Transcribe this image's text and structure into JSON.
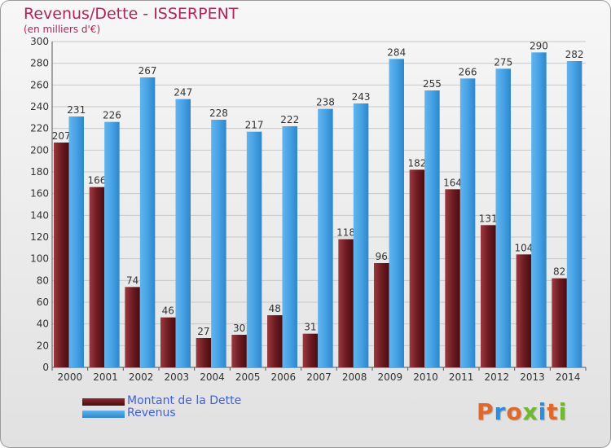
{
  "chart_data": {
    "type": "bar",
    "title": "Revenus/Dette - ISSERPENT",
    "subtitle": "(en milliers d'€)",
    "categories": [
      "2000",
      "2001",
      "2002",
      "2003",
      "2004",
      "2005",
      "2006",
      "2007",
      "2008",
      "2009",
      "2010",
      "2011",
      "2012",
      "2013",
      "2014"
    ],
    "series": [
      {
        "name": "Montant de la Dette",
        "color": "#6b1a1e",
        "values": [
          207,
          166,
          74,
          46,
          27,
          30,
          48,
          31,
          118,
          96,
          182,
          164,
          131,
          104,
          82
        ]
      },
      {
        "name": "Revenus",
        "color": "#3f9ee0",
        "values": [
          231,
          226,
          267,
          247,
          228,
          217,
          222,
          238,
          243,
          284,
          255,
          266,
          275,
          290,
          282
        ]
      }
    ],
    "ylim": [
      0,
      300
    ],
    "yticks": [
      0,
      20,
      40,
      60,
      80,
      100,
      120,
      140,
      160,
      180,
      200,
      220,
      240,
      260,
      280,
      300
    ],
    "grid": true,
    "legend_position": "bottom-left"
  },
  "logo": {
    "text": "Proxiti",
    "colors": [
      "#e0682a",
      "#2a8ee0",
      "#e0682a",
      "#70b82e",
      "#2a8ee0",
      "#e0682a",
      "#70b82e"
    ]
  }
}
